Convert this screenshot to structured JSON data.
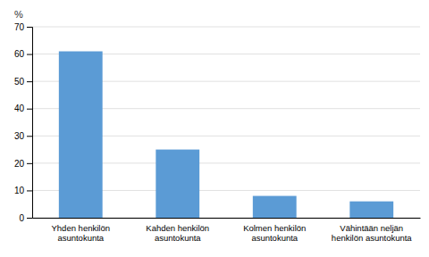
{
  "chart_data": {
    "type": "bar",
    "ylabel": "%",
    "categories": [
      "Yhden henkilön\nasuntokunta",
      "Kahden henkilön\nasuntokunta",
      "Kolmen henkilön\nasuntokunta",
      "Vähintään neljän\nhenkilön asuntokunta"
    ],
    "values": [
      61,
      25,
      8,
      6
    ],
    "color": "#5b9bd5",
    "ylim": [
      0,
      70
    ],
    "yticks": [
      0,
      10,
      20,
      30,
      40,
      50,
      60,
      70
    ],
    "grid": true
  }
}
